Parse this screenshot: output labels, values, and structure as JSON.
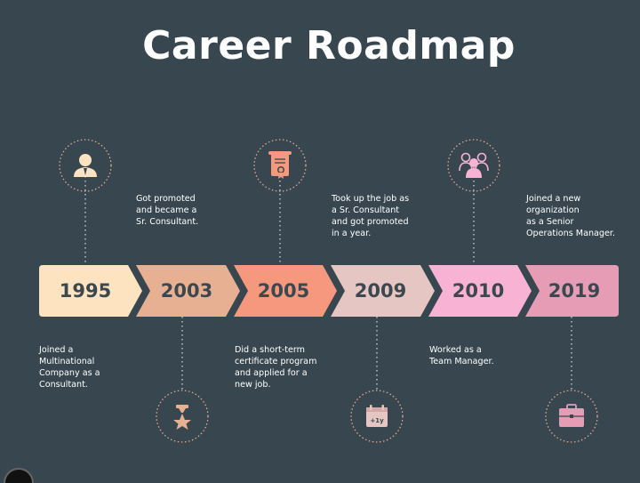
{
  "title": "Career Roadmap",
  "colors": {
    "background": "#38474f",
    "connector": "#c8c8c8",
    "icon_ring": "#e8a58e"
  },
  "milestones": [
    {
      "year": "1995",
      "color": "#fde3c0",
      "description": "Joined a\nMultinational\nCompany as a\nConsultant.",
      "icon": "consultant-person-icon",
      "icon_position": "top"
    },
    {
      "year": "2003",
      "color": "#e8b092",
      "description": "Got promoted\nand became a\nSr. Consultant.",
      "icon": "medal-star-icon",
      "icon_position": "bottom"
    },
    {
      "year": "2005",
      "color": "#f6987e",
      "description": "Did a short-term\ncertificate program\nand applied for a\nnew job.",
      "icon": "certificate-scroll-icon",
      "icon_position": "top"
    },
    {
      "year": "2009",
      "color": "#e5c6c3",
      "description": "Took up the job as\na Sr. Consultant\nand got promoted\nin a year.",
      "icon": "calendar-plus-one-year-icon",
      "icon_position": "bottom"
    },
    {
      "year": "2010",
      "color": "#f7b2d4",
      "description": "Worked as a\nTeam Manager.",
      "icon": "team-group-icon",
      "icon_position": "top"
    },
    {
      "year": "2019",
      "color": "#e79cb5",
      "description": "Joined a new\norganization\nas a Senior\nOperations Manager.",
      "icon": "briefcase-icon",
      "icon_position": "bottom"
    }
  ]
}
